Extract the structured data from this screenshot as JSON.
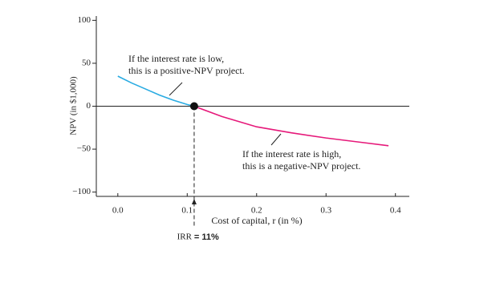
{
  "chart_data": {
    "type": "line",
    "y_label": "NPV (in $1,000)",
    "x_label": "Cost of capital, r (in %)",
    "xlim": [
      -0.031,
      0.42
    ],
    "ylim": [
      -105,
      105
    ],
    "xticks": [
      {
        "value": 0,
        "label": "0.0"
      },
      0.1,
      0.2,
      0.3,
      0.4
    ],
    "yticks": [
      100,
      50,
      0,
      {
        "value": -50,
        "label": "−50"
      },
      {
        "value": -100,
        "label": "−100"
      }
    ],
    "series": [
      {
        "color": "#29abe2",
        "x": [
          0,
          0.02,
          0.04,
          0.06,
          0.08,
          0.1,
          0.11
        ],
        "values": [
          35,
          27,
          20,
          13,
          7,
          2,
          0
        ]
      },
      {
        "color": "#e6197a",
        "x": [
          0.11,
          0.15,
          0.2,
          0.25,
          0.3,
          0.35,
          0.39
        ],
        "values": [
          0,
          -12,
          -24,
          -31,
          -37,
          -42,
          -46
        ]
      }
    ],
    "irr": {
      "x": 0.11,
      "label": "IRR",
      "value_label": "= 11%"
    },
    "annotations": [
      {
        "lines": [
          "If the interest rate is low,",
          "this is a positive-NPV project."
        ]
      },
      {
        "lines": [
          "If the interest rate is high,",
          "this is a negative-NPV project."
        ]
      }
    ]
  }
}
